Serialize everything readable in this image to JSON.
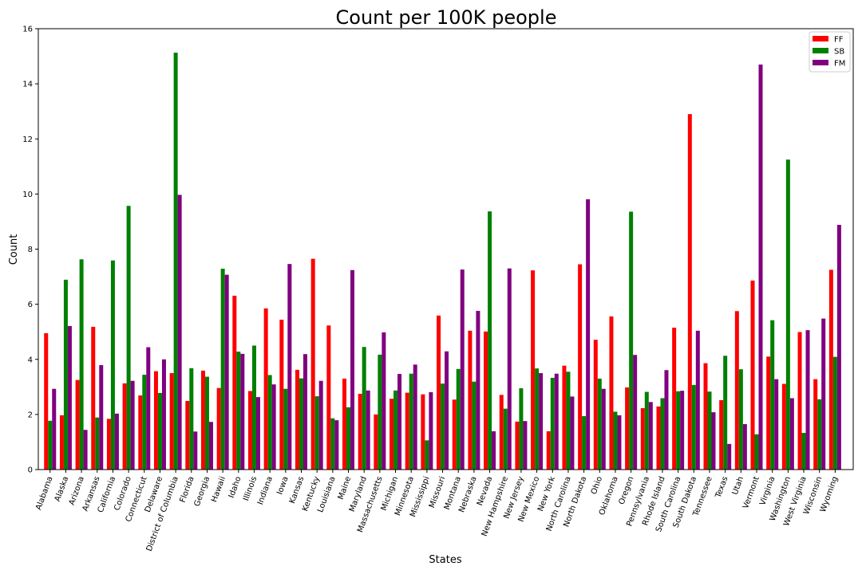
{
  "chart_data": {
    "type": "bar",
    "title": "Count per 100K people",
    "xlabel": "States",
    "ylabel": "Count",
    "ylim": [
      0,
      16
    ],
    "yticks": [
      "0",
      "2",
      "4",
      "6",
      "8",
      "10",
      "12",
      "14",
      "16"
    ],
    "grid": false,
    "legend_position": "top-right",
    "categories": [
      "Alabama",
      "Alaska",
      "Arizona",
      "Arkansas",
      "California",
      "Colorado",
      "Connecticut",
      "Delaware",
      "District of Columbia",
      "Florida",
      "Georgia",
      "Hawaii",
      "Idaho",
      "Illinois",
      "Indiana",
      "Iowa",
      "Kansas",
      "Kentucky",
      "Louisiana",
      "Maine",
      "Maryland",
      "Massachusetts",
      "Michigan",
      "Minnesota",
      "Mississippi",
      "Missouri",
      "Montana",
      "Nebraska",
      "Nevada",
      "New Hampshire",
      "New Jersey",
      "New Mexico",
      "New York",
      "North Carolina",
      "North Dakota",
      "Ohio",
      "Oklahoma",
      "Oregon",
      "Pennsylvania",
      "Rhode Island",
      "South Carolina",
      "South Dakota",
      "Tennessee",
      "Texas",
      "Utah",
      "Vermont",
      "Virginia",
      "Washington",
      "West Virginia",
      "Wisconsin",
      "Wyoming"
    ],
    "series": [
      {
        "name": "FF",
        "color": "#ff0000",
        "values": [
          4.95,
          1.97,
          3.25,
          5.18,
          1.84,
          3.13,
          2.69,
          3.57,
          3.5,
          2.49,
          3.59,
          2.96,
          6.31,
          2.85,
          5.85,
          5.44,
          3.62,
          7.65,
          5.23,
          3.3,
          2.75,
          2.0,
          2.57,
          2.79,
          2.73,
          5.59,
          2.54,
          5.04,
          5.01,
          2.71,
          1.74,
          7.23,
          1.39,
          3.77,
          7.45,
          4.71,
          5.56,
          2.98,
          2.23,
          2.29,
          5.15,
          12.9,
          3.86,
          2.52,
          5.75,
          6.86,
          4.1,
          3.11,
          4.99,
          3.28,
          7.25
        ]
      },
      {
        "name": "SB",
        "color": "#008000",
        "values": [
          1.77,
          6.89,
          7.63,
          1.89,
          7.59,
          9.57,
          3.44,
          2.78,
          15.13,
          3.68,
          3.37,
          7.29,
          4.28,
          4.5,
          3.43,
          2.93,
          3.31,
          2.66,
          1.86,
          2.26,
          4.45,
          4.17,
          2.87,
          3.48,
          1.06,
          3.12,
          3.65,
          3.19,
          9.37,
          2.21,
          2.95,
          3.67,
          3.33,
          3.55,
          1.94,
          3.3,
          2.1,
          9.36,
          2.82,
          2.59,
          2.84,
          3.07,
          2.83,
          4.13,
          3.64,
          1.28,
          5.42,
          11.25,
          1.33,
          2.55,
          4.09
        ]
      },
      {
        "name": "FM",
        "color": "#800080",
        "values": [
          2.93,
          5.21,
          1.44,
          3.79,
          2.03,
          3.22,
          4.44,
          4.0,
          9.97,
          1.38,
          1.73,
          7.07,
          4.2,
          2.63,
          3.09,
          7.46,
          4.19,
          3.22,
          1.79,
          7.24,
          2.87,
          4.98,
          3.47,
          3.81,
          2.81,
          4.29,
          7.26,
          5.76,
          1.39,
          7.3,
          1.76,
          3.5,
          3.48,
          2.65,
          9.81,
          2.93,
          1.97,
          4.16,
          2.45,
          3.61,
          2.86,
          5.04,
          2.08,
          0.93,
          1.65,
          14.7,
          3.28,
          2.59,
          5.06,
          5.48,
          8.88
        ]
      }
    ]
  }
}
